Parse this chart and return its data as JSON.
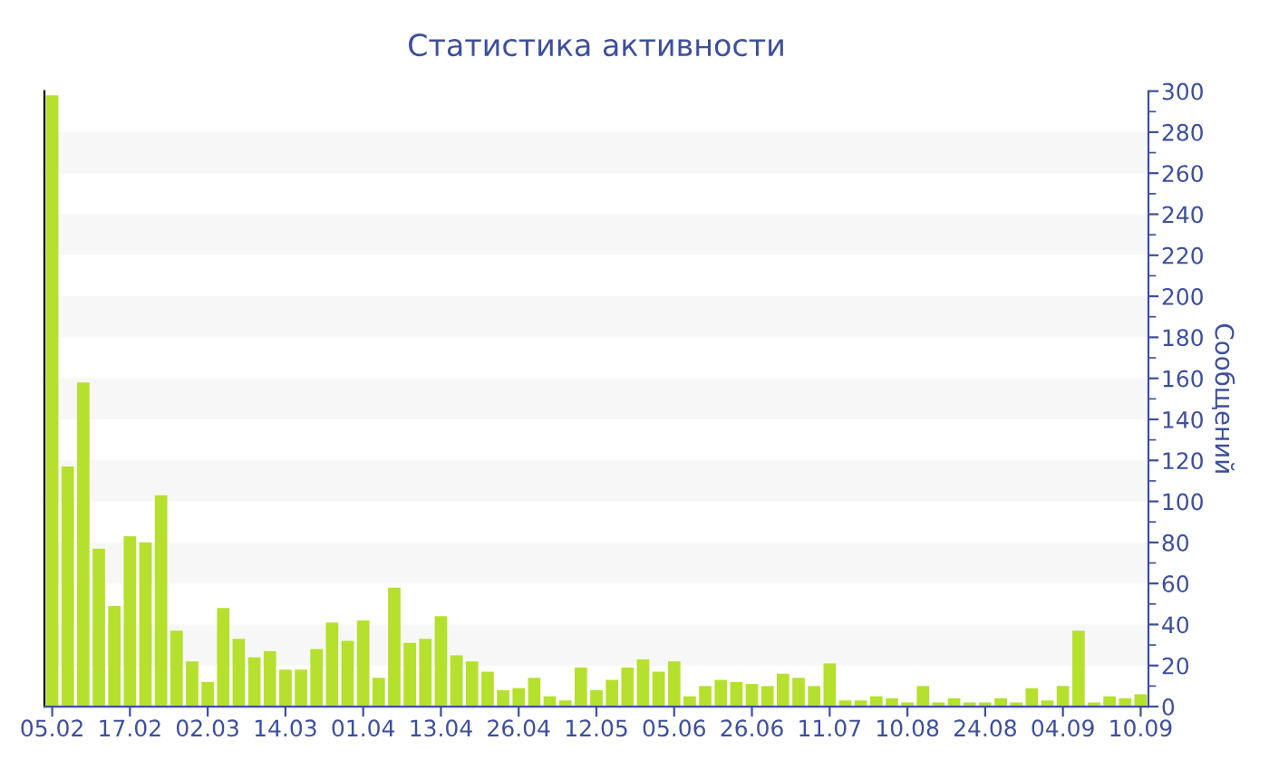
{
  "chart_data": {
    "type": "bar",
    "title": "Статистика активности",
    "ylabel": "Сообщений",
    "categories": [
      "05.02",
      null,
      null,
      null,
      null,
      "17.02",
      null,
      null,
      null,
      null,
      "02.03",
      null,
      null,
      null,
      null,
      "14.03",
      null,
      null,
      null,
      null,
      "01.04",
      null,
      null,
      null,
      null,
      "13.04",
      null,
      null,
      null,
      null,
      "26.04",
      null,
      null,
      null,
      null,
      "12.05",
      null,
      null,
      null,
      null,
      "05.06",
      null,
      null,
      null,
      null,
      "26.06",
      null,
      null,
      null,
      null,
      "11.07",
      null,
      null,
      null,
      null,
      "10.08",
      null,
      null,
      null,
      null,
      "24.08",
      null,
      null,
      null,
      null,
      "04.09",
      null,
      null,
      null,
      null,
      "10.09"
    ],
    "values": [
      298,
      117,
      158,
      77,
      49,
      83,
      80,
      103,
      37,
      22,
      12,
      48,
      33,
      24,
      27,
      18,
      18,
      28,
      41,
      32,
      42,
      14,
      58,
      31,
      33,
      44,
      25,
      22,
      17,
      8,
      9,
      14,
      5,
      3,
      19,
      8,
      13,
      19,
      23,
      17,
      22,
      5,
      10,
      13,
      12,
      11,
      10,
      16,
      14,
      10,
      21,
      3,
      3,
      5,
      4,
      2,
      10,
      2,
      4,
      2,
      2,
      4,
      2,
      9,
      3,
      10,
      37,
      2,
      5,
      4,
      6
    ],
    "color": "#b5e02e",
    "ylim": [
      0,
      300
    ],
    "yticks": [
      0,
      20,
      40,
      60,
      80,
      100,
      120,
      140,
      160,
      180,
      200,
      220,
      240,
      260,
      280,
      300
    ],
    "bands": [
      {
        "axis": "y",
        "from": 20,
        "to": 40,
        "color": "#f7f7f7"
      },
      {
        "axis": "y",
        "from": 60,
        "to": 80,
        "color": "#f7f7f7"
      },
      {
        "axis": "y",
        "from": 100,
        "to": 120,
        "color": "#f7f7f7"
      },
      {
        "axis": "y",
        "from": 140,
        "to": 160,
        "color": "#f7f7f7"
      },
      {
        "axis": "y",
        "from": 180,
        "to": 200,
        "color": "#f7f7f7"
      },
      {
        "axis": "y",
        "from": 220,
        "to": 240,
        "color": "#f7f7f7"
      },
      {
        "axis": "y",
        "from": 260,
        "to": 280,
        "color": "#f7f7f7"
      }
    ],
    "legend": false
  }
}
